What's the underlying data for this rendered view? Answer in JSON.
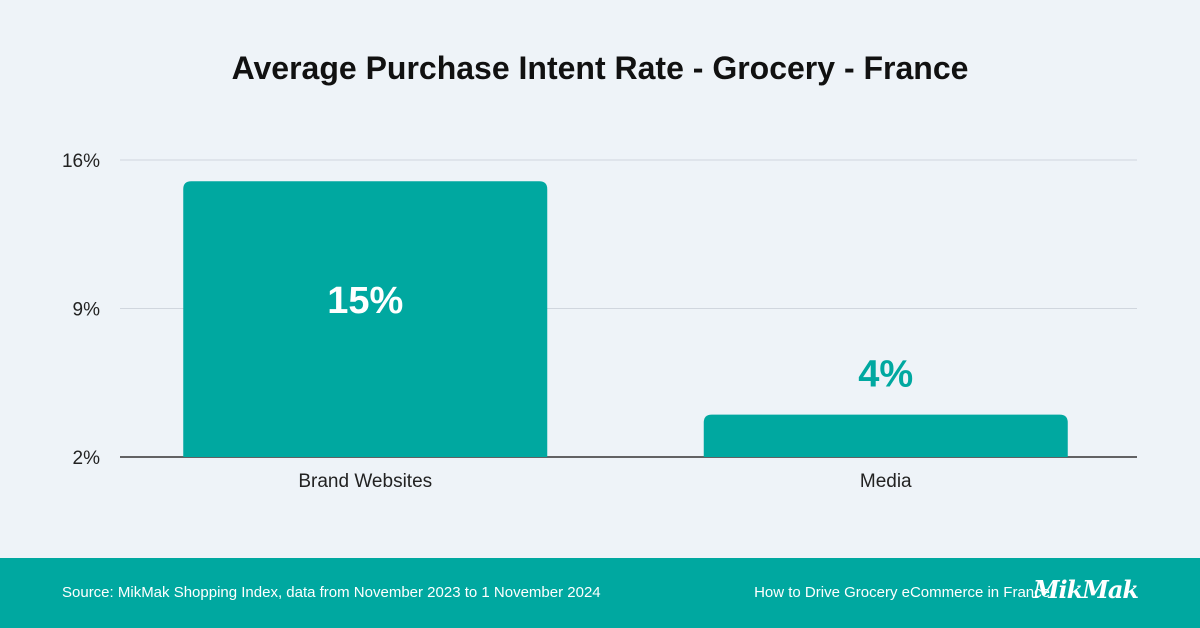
{
  "chart_data": {
    "type": "bar",
    "title": "Average Purchase Intent Rate - Grocery - France",
    "categories": [
      "Brand Websites",
      "Media"
    ],
    "values": [
      15,
      4
    ],
    "value_labels": [
      "15%",
      "4%"
    ],
    "yticks": [
      "16%",
      "9%",
      "2%"
    ],
    "ytick_values": [
      16,
      9,
      2
    ],
    "ylim": [
      2,
      16
    ],
    "xlabel": "",
    "ylabel": "",
    "grid": true,
    "colors": {
      "bar": "#00a8a0",
      "label_inside": "#ffffff",
      "label_outside": "#00a8a0",
      "grid": "#d0d6de",
      "axis": "#333333"
    }
  },
  "footer": {
    "source": "Source: MikMak Shopping Index, data from November 2023 to 1 November 2024",
    "guide": "How to Drive Grocery eCommerce in France",
    "logo": "MikMak"
  }
}
